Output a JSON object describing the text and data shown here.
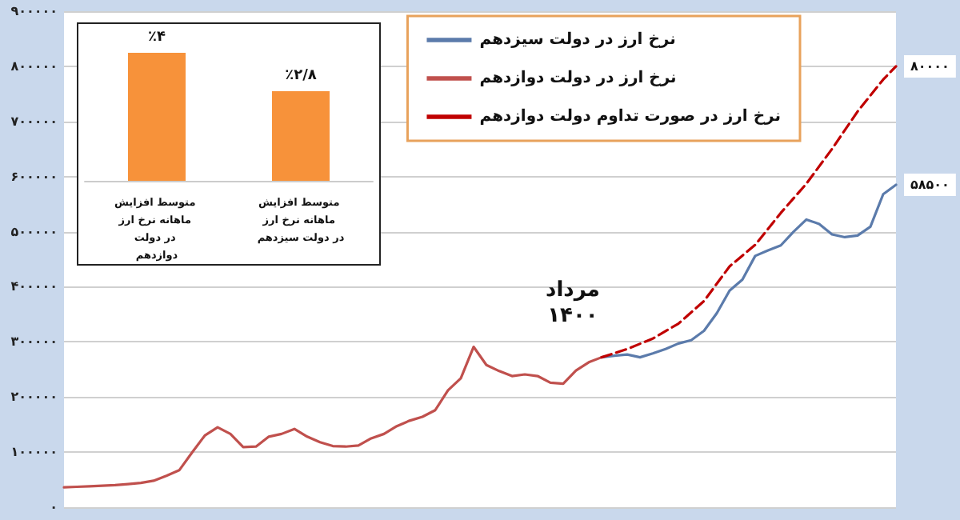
{
  "chart_data": [
    {
      "type": "line",
      "categories": [
        null,
        null,
        null,
        null,
        null,
        null,
        null,
        null,
        null,
        null,
        null,
        null,
        null,
        null,
        null,
        null,
        null,
        null,
        null,
        null,
        null,
        null,
        null,
        null,
        null,
        null,
        null,
        null,
        null,
        null,
        null,
        null,
        null,
        null,
        null,
        null,
        null,
        null,
        null,
        null,
        null,
        null,
        null,
        null,
        null,
        null,
        null,
        null,
        null,
        null,
        null,
        null,
        null,
        null,
        null,
        null,
        null,
        null,
        null,
        null,
        null,
        null,
        null,
        null,
        null,
        null
      ],
      "series": [
        {
          "name": "نرخ ارز در دولت سیزدهم",
          "color": "#5b7bab",
          "values": [
            null,
            null,
            null,
            null,
            null,
            null,
            null,
            null,
            null,
            null,
            null,
            null,
            null,
            null,
            null,
            null,
            null,
            null,
            null,
            null,
            null,
            null,
            null,
            null,
            null,
            null,
            null,
            null,
            null,
            null,
            null,
            null,
            null,
            null,
            null,
            null,
            null,
            null,
            null,
            null,
            null,
            null,
            272000,
            275000,
            277000,
            272000,
            279000,
            287000,
            297000,
            303000,
            320000,
            352000,
            393000,
            413000,
            456000,
            466000,
            475000,
            500000,
            522000,
            514000,
            495000,
            490000,
            493000,
            509000,
            568000,
            585000
          ]
        },
        {
          "name": "نرخ ارز در دولت دوازدهم",
          "color": "#c0504d",
          "values": [
            36000,
            37000,
            38000,
            39000,
            40000,
            42000,
            44000,
            48000,
            57000,
            67000,
            99000,
            130000,
            145000,
            133000,
            109000,
            110000,
            128000,
            133000,
            142000,
            128000,
            118000,
            111000,
            110000,
            112000,
            125000,
            133000,
            147000,
            157000,
            164000,
            176000,
            212000,
            234000,
            291000,
            258000,
            247000,
            238000,
            241000,
            238000,
            226000,
            224000,
            248000,
            263000,
            272000,
            null,
            null,
            null,
            null,
            null,
            null,
            null,
            null,
            null,
            null,
            null,
            null,
            null,
            null,
            null,
            null,
            null,
            null,
            null,
            null,
            null,
            null,
            null
          ]
        },
        {
          "name": "نرخ ارز در صورت تداوم دولت دوازدهم",
          "color": "#c00000",
          "line_style": "dashed",
          "values": [
            null,
            null,
            null,
            null,
            null,
            null,
            null,
            null,
            null,
            null,
            null,
            null,
            null,
            null,
            null,
            null,
            null,
            null,
            null,
            null,
            null,
            null,
            null,
            null,
            null,
            null,
            null,
            null,
            null,
            null,
            null,
            null,
            null,
            null,
            null,
            null,
            null,
            null,
            null,
            null,
            null,
            null,
            272000,
            null,
            287000,
            null,
            306000,
            null,
            333000,
            null,
            374000,
            null,
            437000,
            null,
            476000,
            null,
            534000,
            null,
            587000,
            null,
            650000,
            null,
            718000,
            null,
            776000,
            800000
          ]
        }
      ],
      "ylim": [
        0,
        900000
      ],
      "yticks": [
        {
          "value": 0,
          "label": "۰"
        },
        {
          "value": 100000,
          "label": "۱۰۰۰۰۰"
        },
        {
          "value": 200000,
          "label": "۲۰۰۰۰۰"
        },
        {
          "value": 300000,
          "label": "۳۰۰۰۰۰"
        },
        {
          "value": 400000,
          "label": "۴۰۰۰۰۰"
        },
        {
          "value": 500000,
          "label": "۵۰۰۰۰۰"
        },
        {
          "value": 600000,
          "label": "۶۰۰۰۰۰"
        },
        {
          "value": 700000,
          "label": "۷۰۰۰۰۰"
        },
        {
          "value": 800000,
          "label": "۸۰۰۰۰۰"
        },
        {
          "value": 900000,
          "label": "۹۰۰۰۰۰"
        }
      ],
      "grid": "y",
      "legend": "top right",
      "line_style": "solid",
      "tick_labels": "y",
      "annotations": [
        "مرداد ۱۴۰۰",
        "۸۰۰۰۰",
        "۵۸۵۰۰"
      ]
    },
    {
      "type": "bar",
      "categories": [
        "متوسط افزایش ماهانه نرخ ارز در دولت دوازدهم",
        "متوسط افزایش ماهانه نرخ ارز در دولت سیزدهم"
      ],
      "values": [
        4,
        2.8
      ],
      "color": "#f7923a",
      "value_labels": [
        "٪۴",
        "٪۲/۸"
      ],
      "tick_labels": "x"
    }
  ]
}
